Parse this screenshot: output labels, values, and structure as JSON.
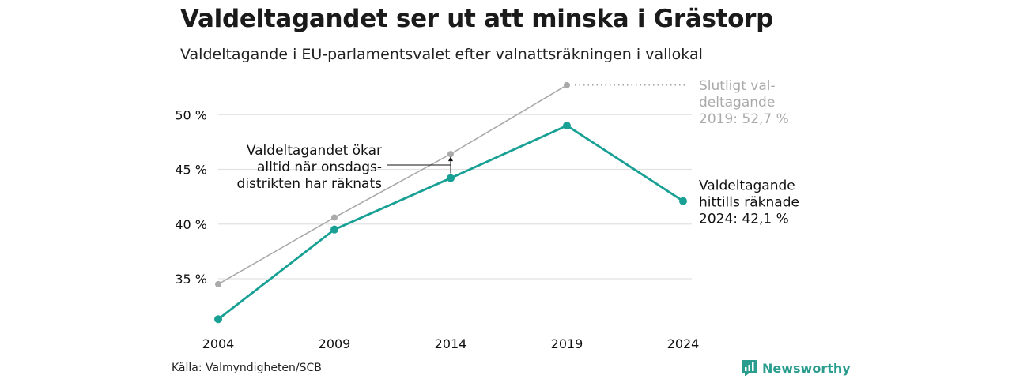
{
  "title": "Valdeltagandet ser ut att minska i Grästorp",
  "subtitle": "Valdeltagande i EU-parlamentsvalet efter valnattsräkningen i vallokal",
  "source": "Källa: Valmyndigheten/SCB",
  "brand": "Newsworthy",
  "colors": {
    "accent": "#18a095",
    "final": "#aaaaaa",
    "grid": "#e2e2e2",
    "text": "#111111"
  },
  "chart_data": {
    "type": "line",
    "x": [
      "2004",
      "2009",
      "2014",
      "2019",
      "2024"
    ],
    "y_ticks": [
      35,
      40,
      45,
      50
    ],
    "y_tick_labels": [
      "35 %",
      "40 %",
      "45 %",
      "50 %"
    ],
    "ylim": [
      30,
      53
    ],
    "grid": true,
    "series": [
      {
        "role": "final",
        "values": [
          34.5,
          40.6,
          46.4,
          52.7,
          null
        ]
      },
      {
        "role": "night",
        "values": [
          31.3,
          39.5,
          44.2,
          49.0,
          42.1
        ]
      }
    ],
    "annotations": {
      "final_label": [
        "Slutligt val-",
        "deltagande",
        "2019: 52,7 %"
      ],
      "night_label": [
        "Valdeltagande",
        "hittills räknade",
        "2024: 42,1 %"
      ],
      "note": [
        "Valdeltagandet ökar",
        "alltid när onsdags-",
        "distrikten har räknats"
      ]
    }
  }
}
